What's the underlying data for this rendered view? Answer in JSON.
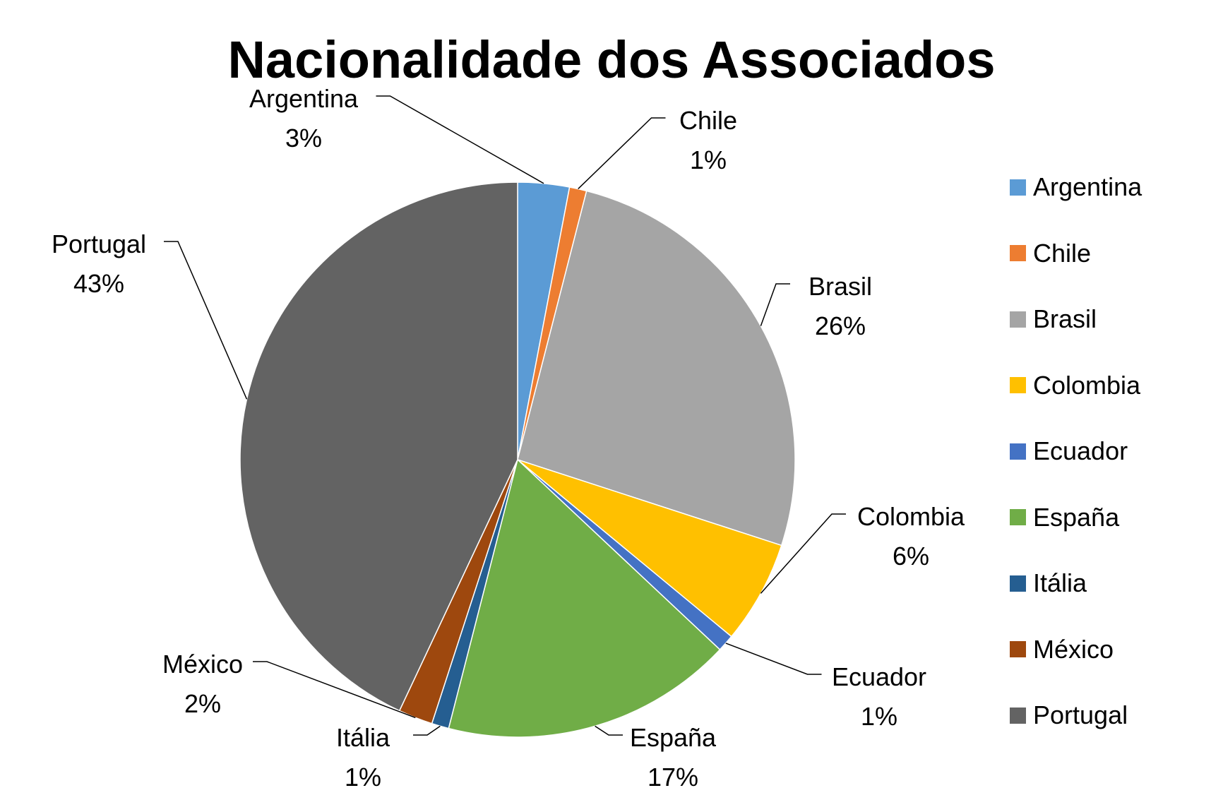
{
  "chart_data": {
    "type": "pie",
    "title": "Nacionalidade dos Associados",
    "unit": "%",
    "legend_position": "right",
    "slices": [
      {
        "label": "Argentina",
        "value": 3,
        "display": "3%",
        "color": "#5B9BD5"
      },
      {
        "label": "Chile",
        "value": 1,
        "display": "1%",
        "color": "#ED7D31"
      },
      {
        "label": "Brasil",
        "value": 26,
        "display": "26%",
        "color": "#A5A5A5"
      },
      {
        "label": "Colombia",
        "value": 6,
        "display": "6%",
        "color": "#FFC000"
      },
      {
        "label": "Ecuador",
        "value": 1,
        "display": "1%",
        "color": "#4472C4"
      },
      {
        "label": "España",
        "value": 17,
        "display": "17%",
        "color": "#70AD47"
      },
      {
        "label": "Itália",
        "value": 1,
        "display": "1%",
        "color": "#255E91"
      },
      {
        "label": "México",
        "value": 2,
        "display": "2%",
        "color": "#9E480E"
      },
      {
        "label": "Portugal",
        "value": 43,
        "display": "43%",
        "color": "#636363"
      }
    ]
  }
}
